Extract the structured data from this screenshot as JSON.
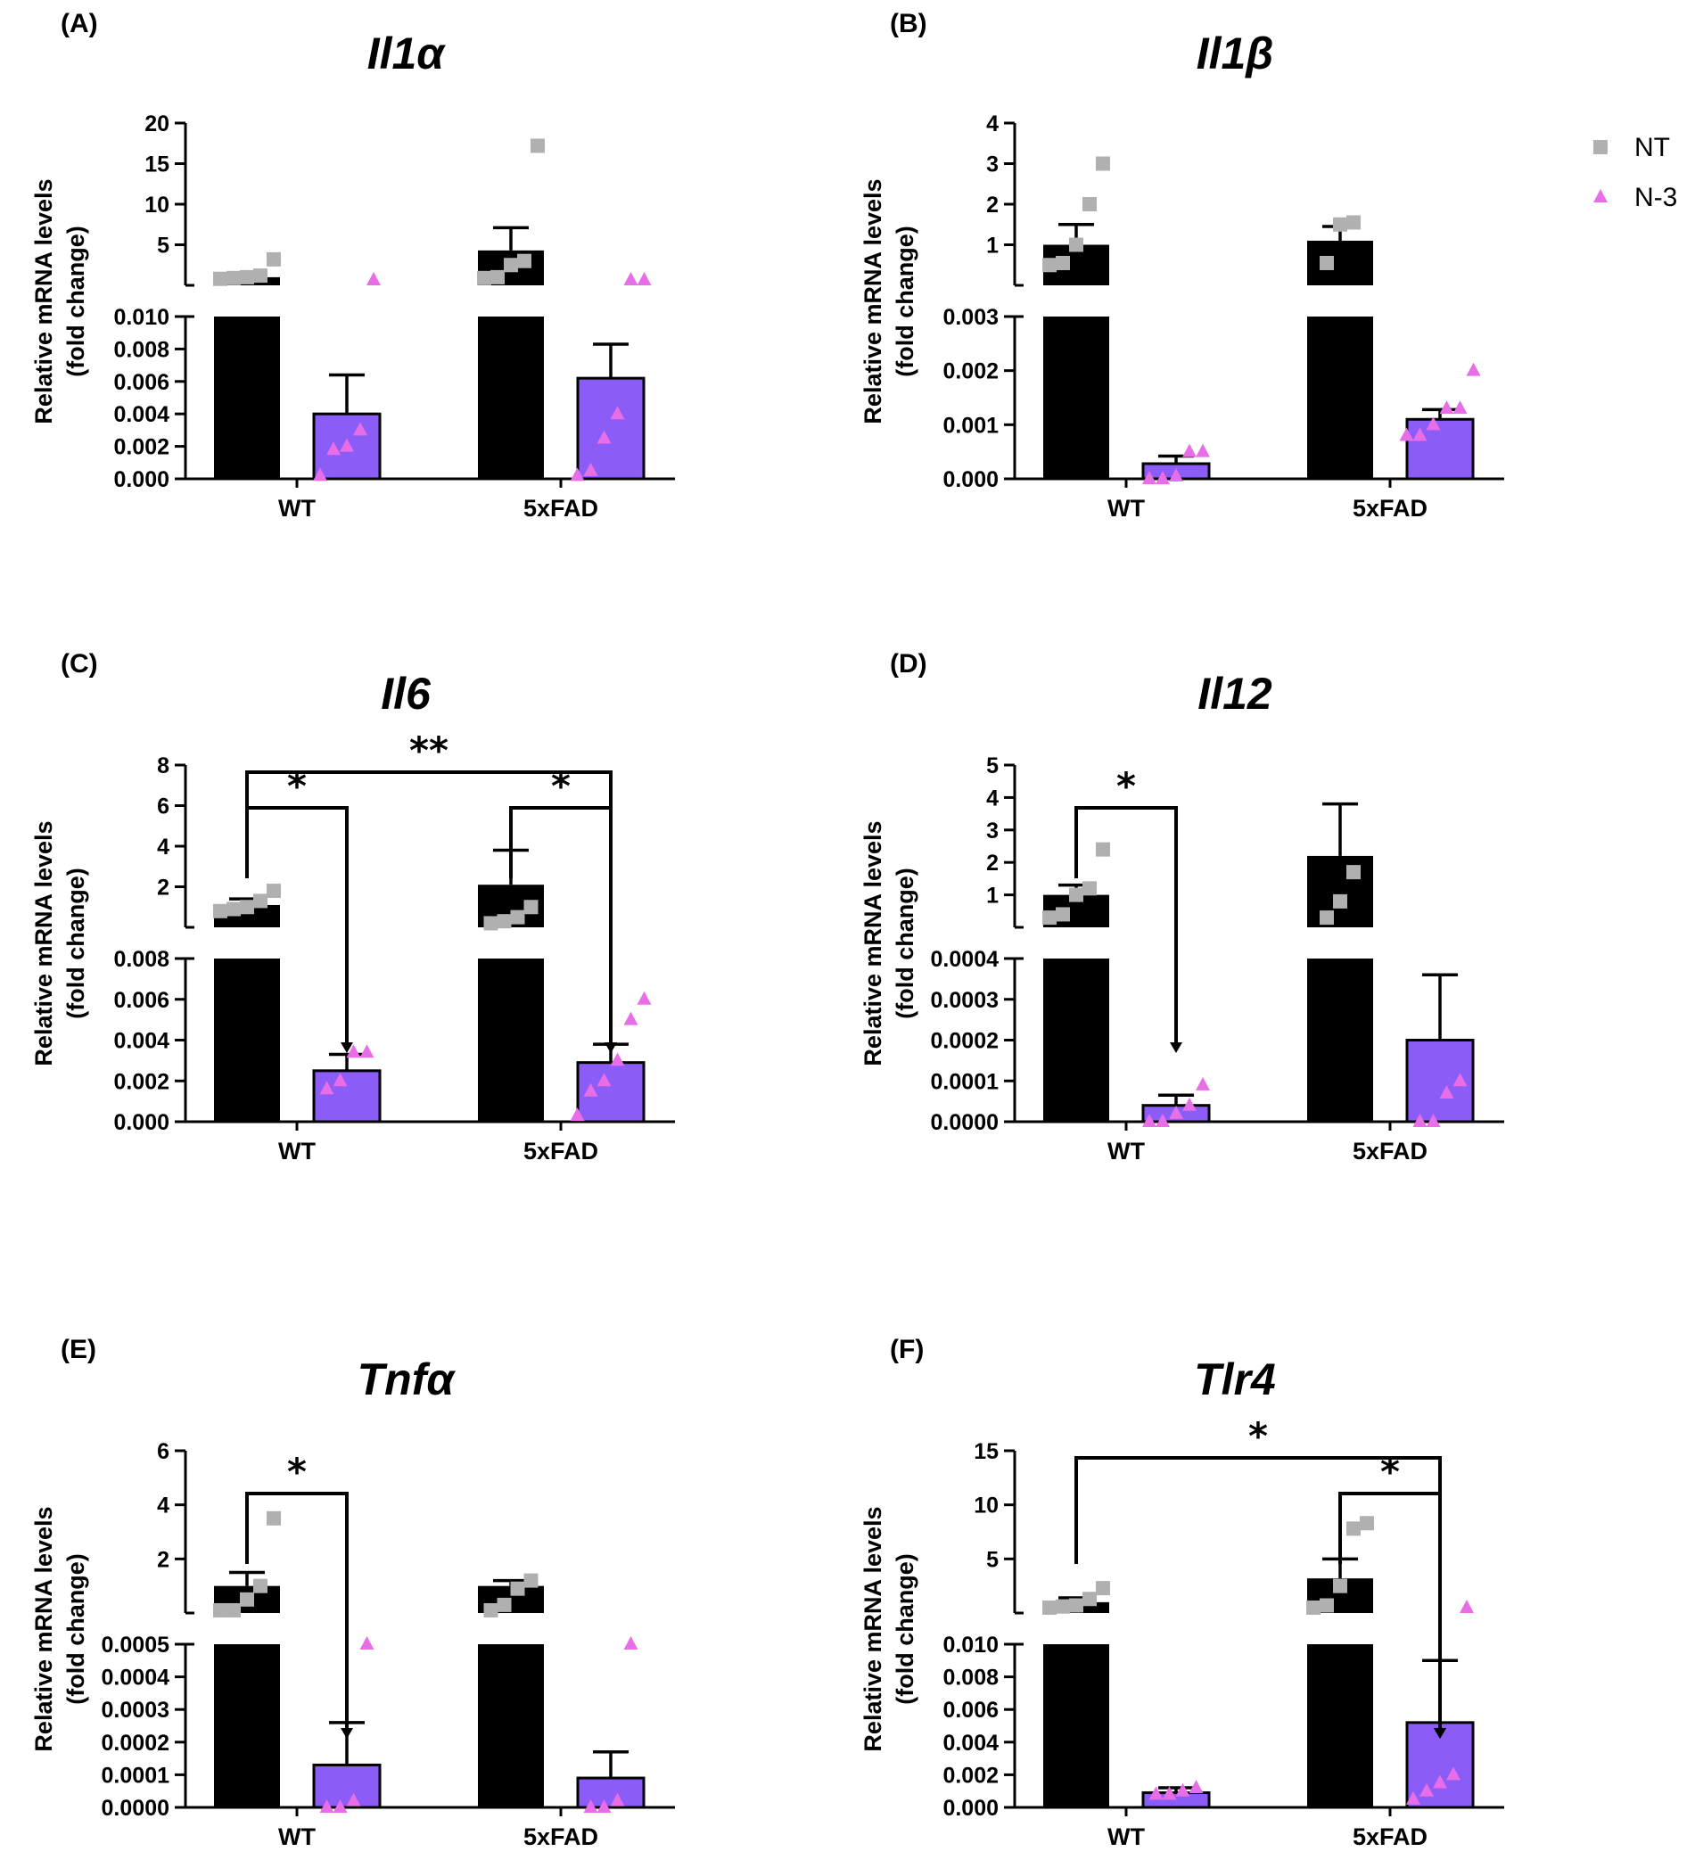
{
  "legend": [
    {
      "name": "NT",
      "color": "#b0b0b0",
      "marker": "square"
    },
    {
      "name": "N-3",
      "color": "#e86ee8",
      "marker": "triangle"
    }
  ],
  "colors": {
    "nt_bar": "#000000",
    "n3_bar": "#8b5cf6",
    "nt_point": "#b0b0b0",
    "n3_point": "#e86ee8"
  },
  "chart_data": [
    {
      "panel": "(A)",
      "title": "Il1α",
      "type": "bar",
      "ylabel": [
        "Relative mRNA levels",
        "(fold change)"
      ],
      "categories": [
        "WT",
        "5xFAD"
      ],
      "lower_ylim": [
        0,
        0.01
      ],
      "upper_ylim": [
        0,
        20
      ],
      "lower_ticks": [
        "0.000",
        "0.002",
        "0.004",
        "0.006",
        "0.008",
        "0.010"
      ],
      "upper_ticks": [
        "5",
        "10",
        "15",
        "20"
      ],
      "series": [
        {
          "name": "NT",
          "values": [
            1.0,
            4.3
          ],
          "sem": [
            0.3,
            2.8
          ],
          "points": [
            [
              0.8,
              0.9,
              1.0,
              1.2,
              3.2
            ],
            [
              0.9,
              1.0,
              2.5,
              3.0,
              17.2
            ]
          ]
        },
        {
          "name": "N-3",
          "values": [
            0.004,
            0.0062
          ],
          "sem": [
            0.0024,
            0.0021
          ],
          "points": [
            [
              0.0002,
              0.0018,
              0.002,
              0.003,
              0.012
            ],
            [
              0.0002,
              0.0005,
              0.0025,
              0.004,
              0.012,
              0.012
            ]
          ]
        }
      ],
      "significance": []
    },
    {
      "panel": "(B)",
      "title": "Il1β",
      "type": "bar",
      "ylabel": [
        "Relative mRNA levels",
        "(fold change)"
      ],
      "categories": [
        "WT",
        "5xFAD"
      ],
      "lower_ylim": [
        0,
        0.003
      ],
      "upper_ylim": [
        0,
        4
      ],
      "lower_ticks": [
        "0.000",
        "0.001",
        "0.002",
        "0.003"
      ],
      "upper_ticks": [
        "1",
        "2",
        "3",
        "4"
      ],
      "series": [
        {
          "name": "NT",
          "values": [
            1.0,
            1.1
          ],
          "sem": [
            0.5,
            0.35
          ],
          "points": [
            [
              0.5,
              0.55,
              1.0,
              2.0,
              3.0
            ],
            [
              0.55,
              1.5,
              1.55
            ]
          ]
        },
        {
          "name": "N-3",
          "values": [
            0.00028,
            0.0011
          ],
          "sem": [
            0.00014,
            0.00018
          ],
          "points": [
            [
              0.0,
              0.0,
              5e-05,
              0.0005,
              0.0005
            ],
            [
              0.0008,
              0.0008,
              0.001,
              0.0013,
              0.0013,
              0.002
            ]
          ]
        }
      ],
      "significance": []
    },
    {
      "panel": "(C)",
      "title": "Il6",
      "type": "bar",
      "ylabel": [
        "Relative mRNA levels",
        "(fold change)"
      ],
      "categories": [
        "WT",
        "5xFAD"
      ],
      "lower_ylim": [
        0,
        0.008
      ],
      "upper_ylim": [
        0,
        8
      ],
      "lower_ticks": [
        "0.000",
        "0.002",
        "0.004",
        "0.006",
        "0.008"
      ],
      "upper_ticks": [
        "2",
        "4",
        "6",
        "8"
      ],
      "series": [
        {
          "name": "NT",
          "values": [
            1.1,
            2.1
          ],
          "sem": [
            0.3,
            1.7
          ],
          "points": [
            [
              0.8,
              0.9,
              1.0,
              1.3,
              1.8
            ],
            [
              0.2,
              0.3,
              0.5,
              1.0
            ]
          ]
        },
        {
          "name": "N-3",
          "values": [
            0.0025,
            0.0029
          ],
          "sem": [
            0.0008,
            0.0009
          ],
          "points": [
            [
              0.0016,
              0.002,
              0.0034,
              0.0034
            ],
            [
              0.0003,
              0.0015,
              0.002,
              0.003,
              0.005,
              0.006
            ]
          ]
        }
      ],
      "significance": [
        {
          "label": "*",
          "from": "WT NT",
          "to": "WT N-3"
        },
        {
          "label": "*",
          "from": "5xFAD NT",
          "to": "5xFAD N-3"
        },
        {
          "label": "**",
          "from": "WT NT",
          "to": "5xFAD N-3"
        }
      ]
    },
    {
      "panel": "(D)",
      "title": "Il12",
      "type": "bar",
      "ylabel": [
        "Relative mRNA levels",
        "(fold change)"
      ],
      "categories": [
        "WT",
        "5xFAD"
      ],
      "lower_ylim": [
        0,
        0.0004
      ],
      "upper_ylim": [
        0,
        5
      ],
      "lower_ticks": [
        "0.0000",
        "0.0001",
        "0.0002",
        "0.0003",
        "0.0004"
      ],
      "upper_ticks": [
        "1",
        "2",
        "3",
        "4",
        "5"
      ],
      "series": [
        {
          "name": "NT",
          "values": [
            1.0,
            2.2
          ],
          "sem": [
            0.3,
            1.6
          ],
          "points": [
            [
              0.3,
              0.4,
              1.0,
              1.2,
              2.4
            ],
            [
              0.3,
              0.8,
              1.7
            ]
          ]
        },
        {
          "name": "N-3",
          "values": [
            4e-05,
            0.0002
          ],
          "sem": [
            2.5e-05,
            0.00016
          ],
          "points": [
            [
              0.0,
              0.0,
              2e-05,
              4e-05,
              9e-05
            ],
            [
              0.0,
              0.0,
              7e-05,
              0.0001
            ]
          ]
        }
      ],
      "significance": [
        {
          "label": "*",
          "from": "WT NT",
          "to": "WT N-3"
        }
      ]
    },
    {
      "panel": "(E)",
      "title": "Tnfα",
      "type": "bar",
      "ylabel": [
        "Relative mRNA levels",
        "(fold change)"
      ],
      "categories": [
        "WT",
        "5xFAD"
      ],
      "lower_ylim": [
        0,
        0.0005
      ],
      "upper_ylim": [
        0,
        6
      ],
      "lower_ticks": [
        "0.0000",
        "0.0001",
        "0.0002",
        "0.0003",
        "0.0004",
        "0.0005"
      ],
      "upper_ticks": [
        "2",
        "4",
        "6"
      ],
      "series": [
        {
          "name": "NT",
          "values": [
            1.0,
            1.0
          ],
          "sem": [
            0.5,
            0.2
          ],
          "points": [
            [
              0.1,
              0.1,
              0.5,
              1.0,
              3.5
            ],
            [
              0.1,
              0.3,
              0.9,
              1.2
            ]
          ]
        },
        {
          "name": "N-3",
          "values": [
            0.00013,
            9e-05
          ],
          "sem": [
            0.00013,
            8e-05
          ],
          "points": [
            [
              0.0,
              0.0,
              2e-05,
              0.0005
            ],
            [
              0.0,
              0.0,
              2e-05,
              0.0005
            ]
          ]
        }
      ],
      "significance": [
        {
          "label": "*",
          "from": "WT NT",
          "to": "WT N-3"
        }
      ]
    },
    {
      "panel": "(F)",
      "title": "Tlr4",
      "type": "bar",
      "ylabel": [
        "Relative mRNA levels",
        "(fold change)"
      ],
      "categories": [
        "WT",
        "5xFAD"
      ],
      "lower_ylim": [
        0,
        0.01
      ],
      "upper_ylim": [
        0,
        15
      ],
      "lower_ticks": [
        "0.000",
        "0.002",
        "0.004",
        "0.006",
        "0.008",
        "0.010"
      ],
      "upper_ticks": [
        "5",
        "10",
        "15"
      ],
      "series": [
        {
          "name": "NT",
          "values": [
            1.0,
            3.2
          ],
          "sem": [
            0.4,
            1.8
          ],
          "points": [
            [
              0.5,
              0.6,
              0.7,
              1.3,
              2.3
            ],
            [
              0.5,
              0.7,
              2.5,
              7.8,
              8.3
            ]
          ]
        },
        {
          "name": "N-3",
          "values": [
            0.0009,
            0.0052
          ],
          "sem": [
            0.0003,
            0.0038
          ],
          "points": [
            [
              0.0008,
              0.0008,
              0.001,
              0.0012
            ],
            [
              0.0005,
              0.001,
              0.0015,
              0.002,
              0.012
            ]
          ]
        }
      ],
      "significance": [
        {
          "label": "*",
          "from": "5xFAD NT",
          "to": "5xFAD N-3"
        },
        {
          "label": "*",
          "from": "WT NT",
          "to": "5xFAD N-3"
        }
      ]
    }
  ]
}
